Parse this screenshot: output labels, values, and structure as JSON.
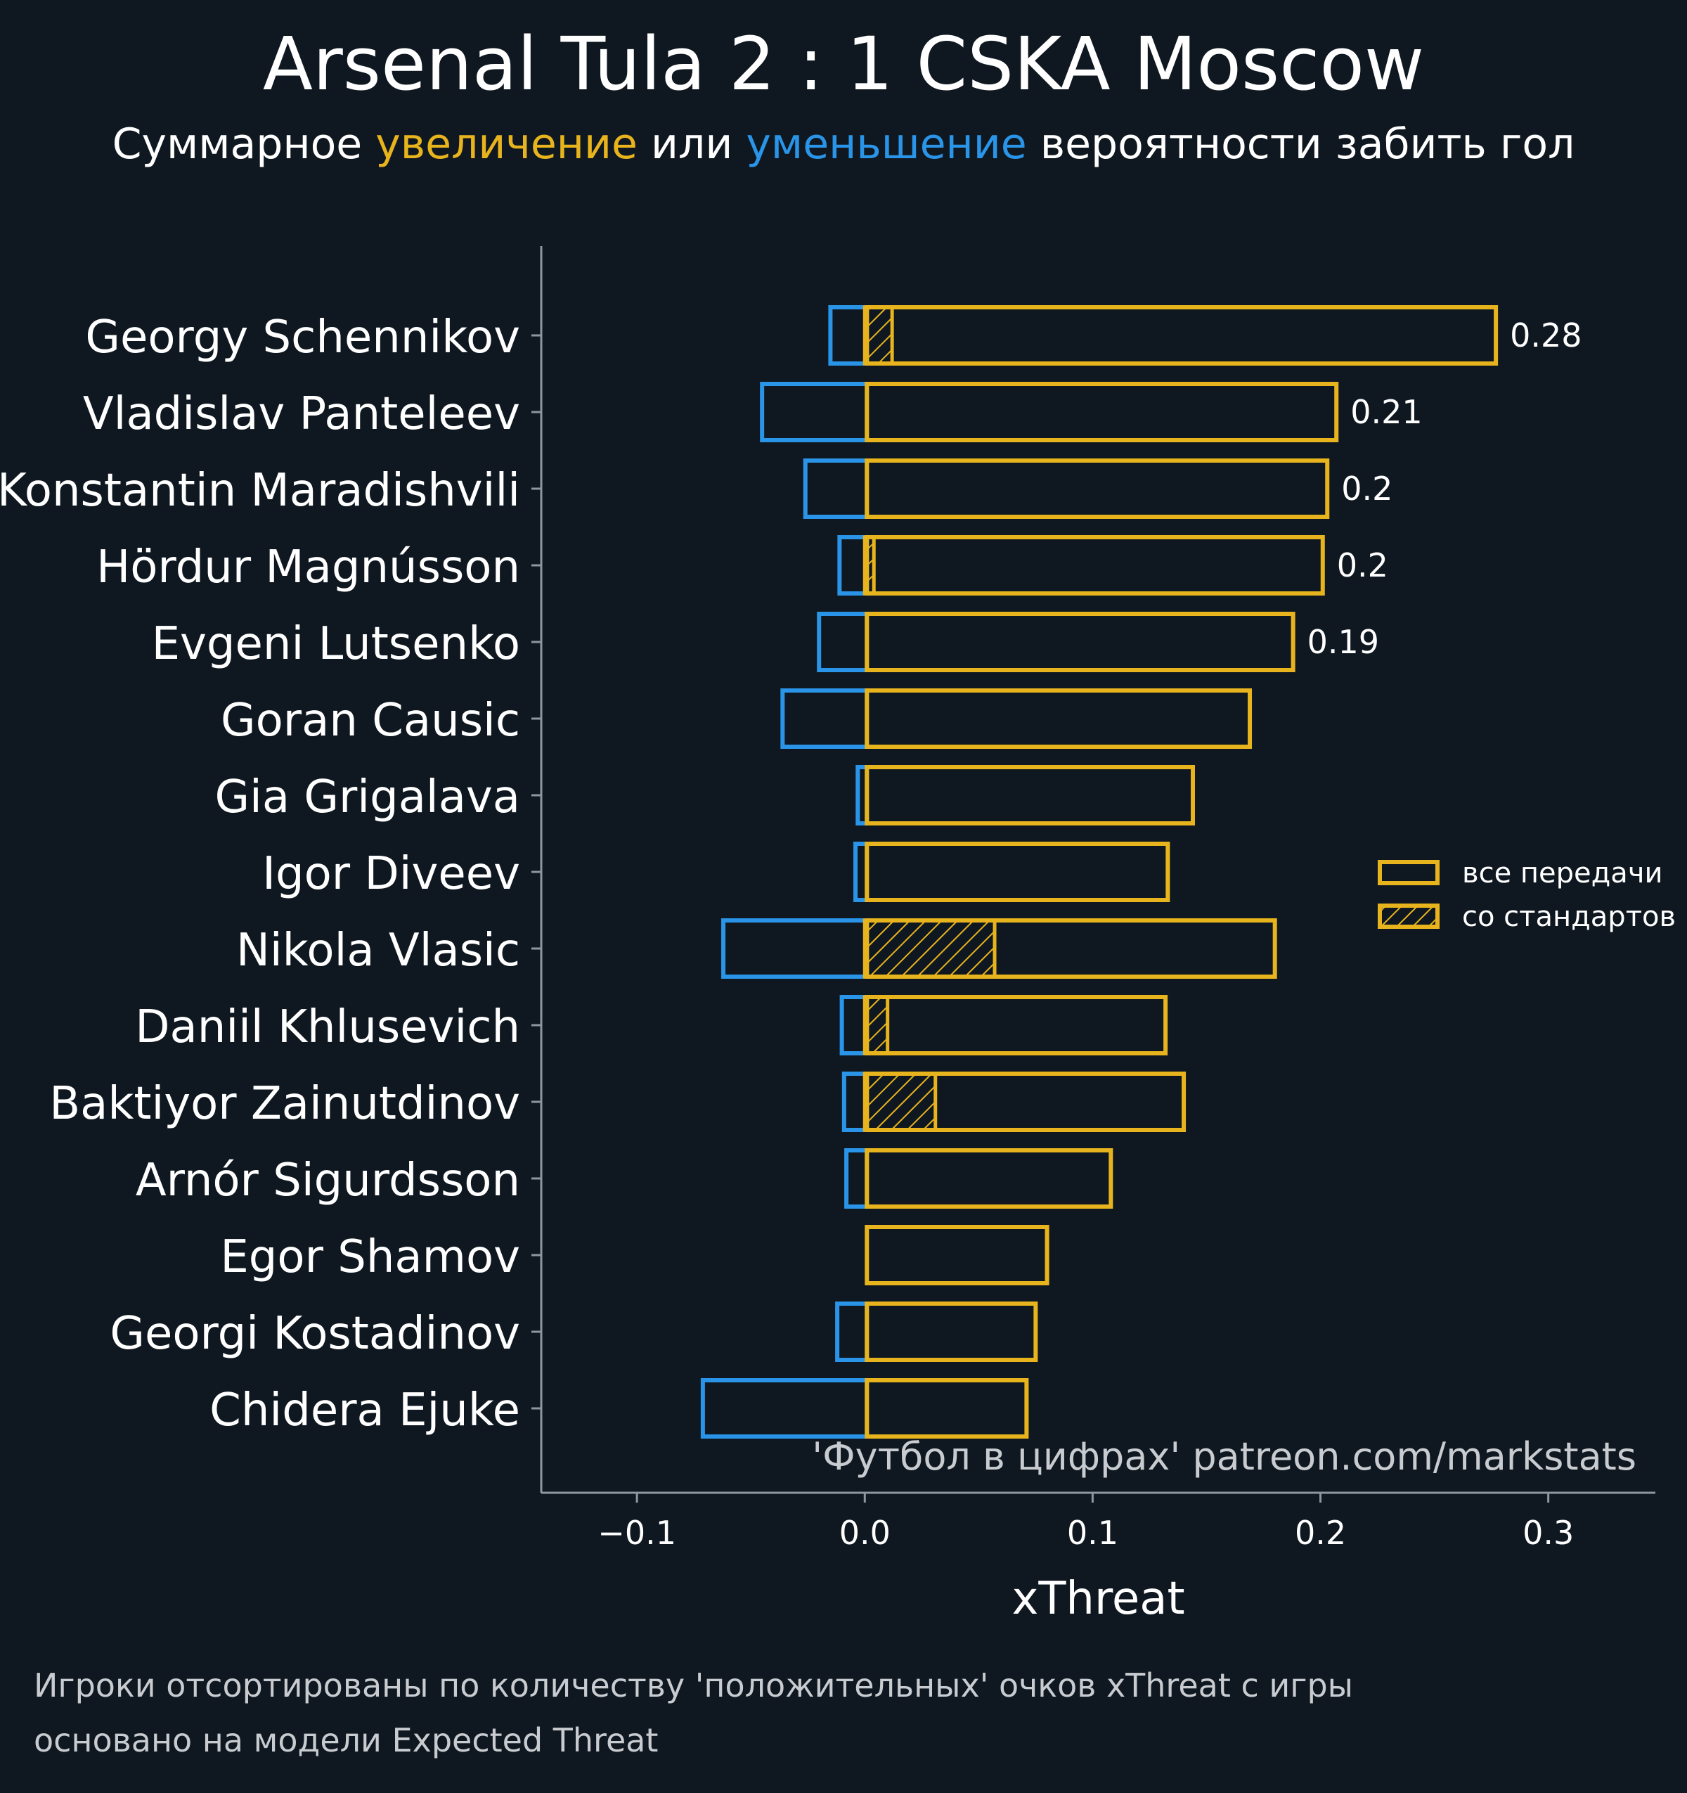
{
  "header": {
    "title": "Arsenal Tula 2 : 1 CSKA Moscow",
    "subtitle_prefix": "Суммарное ",
    "subtitle_increase": "увеличение",
    "subtitle_middle": " или ",
    "subtitle_decrease": "уменьшение",
    "subtitle_suffix": " вероятности забить гол"
  },
  "colors": {
    "background": "#0f1820",
    "positive": "#e8b41e",
    "negative": "#2a95e8",
    "axis": "#8e979e",
    "text": "#ffffff",
    "muted": "#c8ccd0"
  },
  "chart_data": {
    "type": "bar",
    "orientation": "horizontal",
    "xlabel": "xThreat",
    "ylabel": "",
    "xlim": [
      -0.142,
      0.347
    ],
    "xticks": [
      -0.1,
      0.0,
      0.1,
      0.2,
      0.3
    ],
    "xtick_labels": [
      "−0.1",
      "0.0",
      "0.1",
      "0.2",
      "0.3"
    ],
    "grid": false,
    "legend_position": "right",
    "categories": [
      "Georgy Schennikov",
      "Vladislav Panteleev",
      "Konstantin Maradishvili",
      "Hördur Magnússon",
      "Evgeni Lutsenko",
      "Goran Causic",
      "Gia Grigalava",
      "Igor Diveev",
      "Nikola Vlasic",
      "Daniil Khlusevich",
      "Baktiyor Zainutdinov",
      "Arnór Sigurdsson",
      "Egor Shamov",
      "Georgi Kostadinov",
      "Chidera Ejuke"
    ],
    "series": [
      {
        "name": "все передачи",
        "values": [
          0.277,
          0.207,
          0.203,
          0.201,
          0.188,
          0.169,
          0.144,
          0.133,
          0.18,
          0.132,
          0.14,
          0.108,
          0.08,
          0.075,
          0.071
        ]
      },
      {
        "name": "со стандартов",
        "values": [
          0.012,
          0.0,
          0.0,
          0.004,
          0.0,
          0.0,
          0.0,
          0.0,
          0.057,
          0.01,
          0.031,
          0.0,
          0.0,
          0.0,
          0.0
        ]
      },
      {
        "values": [
          -0.016,
          -0.046,
          -0.027,
          -0.012,
          -0.021,
          -0.037,
          -0.004,
          -0.005,
          -0.063,
          -0.011,
          -0.01,
          -0.009,
          0.0,
          -0.013,
          -0.072
        ]
      }
    ],
    "value_labels": [
      "0.28",
      "0.21",
      "0.2",
      "0.2",
      "0.19",
      "",
      "",
      "",
      "",
      "",
      "",
      "",
      "",
      "",
      ""
    ],
    "legend": [
      "все передачи",
      "со стандартов"
    ],
    "watermark": "'Футбол в цифрах' patreon.com/markstats"
  },
  "footer": {
    "line1": "Игроки отсортированы по количеству 'положительных' очков xThreat с игры",
    "line2": "основано на модели Expected Threat"
  }
}
